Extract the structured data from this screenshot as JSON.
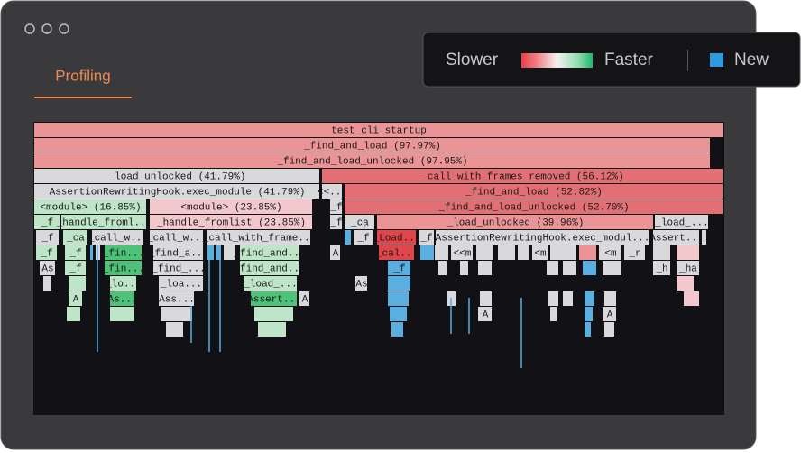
{
  "window": {
    "tab": "Profiling"
  },
  "legend": {
    "slower": "Slower",
    "faster": "Faster",
    "new": "New"
  },
  "flamegraph": {
    "frames": [
      "test_cli_startup",
      "_find_and_load (97.97%)",
      "_find_and_load_unlocked (97.95%)",
      "_load_unlocked (41.79%)",
      "_call_with_frames_removed (56.12%)",
      "AssertionRewritingHook.exec_module (41.79%)",
      "<<...",
      "_find_and_load (52.82%)",
      "<module> (16.85%)",
      "<module> (23.85%)",
      "_f",
      "_find_and_load_unlocked (52.70%)",
      "_f",
      "_handle_froml...",
      "_handle_fromlist (23.85%)",
      "_f",
      "_ca",
      "_load_unlocked (39.96%)",
      "_load_...",
      "_f",
      "_ca",
      "_call_w...",
      "_call_w...",
      "_call_with_frame...",
      "_f",
      "_Load...",
      "_f",
      "AssertionRewritingHook.exec_modul...",
      "Assert...",
      "_f",
      "_f",
      "_fin...",
      "_find_a...",
      "_find_and...",
      "_cal...",
      "<<m",
      "<m",
      "<m",
      "_r",
      "A",
      "As",
      "_f",
      "_fin...",
      "_find_...",
      "_find_and...",
      "_f",
      "_ha",
      "_h",
      "_lo...",
      "_loa...",
      "_load_...",
      "As",
      "As...",
      "Ass...",
      "Assert...",
      "A",
      "A",
      "A",
      "A"
    ]
  }
}
